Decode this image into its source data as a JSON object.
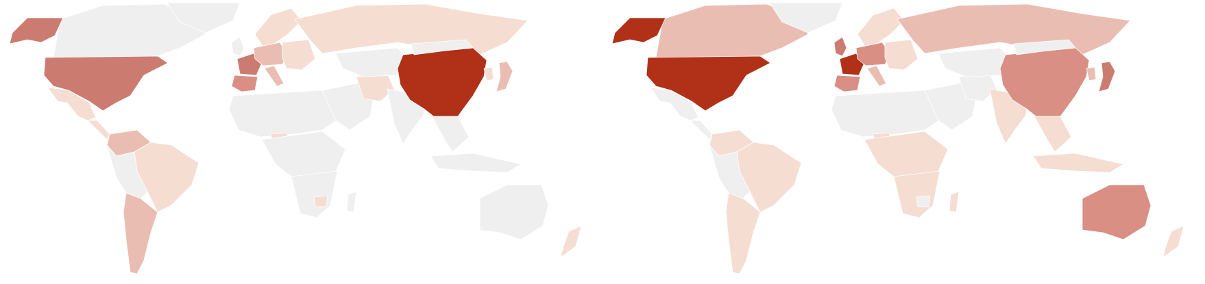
{
  "scale_colors": {
    "none": "#efefef",
    "level1": "#f5ddd2",
    "level2": "#eabdb3",
    "level3": "#d98f84",
    "level4": "#cc7b70",
    "level5": "#b03018"
  },
  "maps": [
    {
      "id": "left",
      "regions": [
        {
          "name": "canada",
          "level": "none"
        },
        {
          "name": "greenland",
          "level": "none"
        },
        {
          "name": "alaska",
          "level": "level4"
        },
        {
          "name": "usa",
          "level": "level4"
        },
        {
          "name": "mexico",
          "level": "level1"
        },
        {
          "name": "central-america",
          "level": "level1"
        },
        {
          "name": "colombia-venezuela",
          "level": "level2"
        },
        {
          "name": "brazil",
          "level": "level1"
        },
        {
          "name": "south-america-west",
          "level": "none"
        },
        {
          "name": "argentina-chile",
          "level": "level2"
        },
        {
          "name": "uk-ireland",
          "level": "none"
        },
        {
          "name": "scandinavia",
          "level": "level1"
        },
        {
          "name": "france",
          "level": "level4"
        },
        {
          "name": "spain-portugal",
          "level": "level3"
        },
        {
          "name": "central-europe",
          "level": "level2"
        },
        {
          "name": "italy",
          "level": "level2"
        },
        {
          "name": "eastern-europe",
          "level": "level1"
        },
        {
          "name": "russia",
          "level": "level1"
        },
        {
          "name": "north-africa",
          "level": "none"
        },
        {
          "name": "nigeria",
          "level": "level1"
        },
        {
          "name": "central-africa",
          "level": "none"
        },
        {
          "name": "southern-africa",
          "level": "none"
        },
        {
          "name": "zimbabwe",
          "level": "level1"
        },
        {
          "name": "madagascar",
          "level": "none"
        },
        {
          "name": "middle-east",
          "level": "none"
        },
        {
          "name": "iran",
          "level": "level1"
        },
        {
          "name": "central-asia",
          "level": "none"
        },
        {
          "name": "india",
          "level": "none"
        },
        {
          "name": "china",
          "level": "level5"
        },
        {
          "name": "mongolia",
          "level": "none"
        },
        {
          "name": "southeast-asia",
          "level": "none"
        },
        {
          "name": "japan",
          "level": "level2"
        },
        {
          "name": "korea",
          "level": "level1"
        },
        {
          "name": "indonesia",
          "level": "none"
        },
        {
          "name": "australia",
          "level": "none"
        },
        {
          "name": "new-zealand",
          "level": "level1"
        }
      ]
    },
    {
      "id": "right",
      "regions": [
        {
          "name": "canada",
          "level": "level2"
        },
        {
          "name": "greenland",
          "level": "none"
        },
        {
          "name": "alaska",
          "level": "level5"
        },
        {
          "name": "usa",
          "level": "level5"
        },
        {
          "name": "mexico",
          "level": "none"
        },
        {
          "name": "central-america",
          "level": "none"
        },
        {
          "name": "colombia-venezuela",
          "level": "level1"
        },
        {
          "name": "brazil",
          "level": "level1"
        },
        {
          "name": "south-america-west",
          "level": "none"
        },
        {
          "name": "argentina-chile",
          "level": "level1"
        },
        {
          "name": "uk-ireland",
          "level": "level4"
        },
        {
          "name": "scandinavia",
          "level": "level1"
        },
        {
          "name": "france",
          "level": "level5"
        },
        {
          "name": "spain-portugal",
          "level": "level3"
        },
        {
          "name": "central-europe",
          "level": "level3"
        },
        {
          "name": "italy",
          "level": "level2"
        },
        {
          "name": "eastern-europe",
          "level": "level1"
        },
        {
          "name": "russia",
          "level": "level2"
        },
        {
          "name": "north-africa",
          "level": "none"
        },
        {
          "name": "nigeria",
          "level": "level1"
        },
        {
          "name": "central-africa",
          "level": "level1"
        },
        {
          "name": "southern-africa",
          "level": "level1"
        },
        {
          "name": "zimbabwe",
          "level": "none"
        },
        {
          "name": "madagascar",
          "level": "level1"
        },
        {
          "name": "middle-east",
          "level": "none"
        },
        {
          "name": "iran",
          "level": "none"
        },
        {
          "name": "central-asia",
          "level": "none"
        },
        {
          "name": "india",
          "level": "level1"
        },
        {
          "name": "china",
          "level": "level3"
        },
        {
          "name": "mongolia",
          "level": "none"
        },
        {
          "name": "southeast-asia",
          "level": "level1"
        },
        {
          "name": "japan",
          "level": "level4"
        },
        {
          "name": "korea",
          "level": "level2"
        },
        {
          "name": "indonesia",
          "level": "level1"
        },
        {
          "name": "australia",
          "level": "level3"
        },
        {
          "name": "new-zealand",
          "level": "level1"
        }
      ]
    }
  ]
}
